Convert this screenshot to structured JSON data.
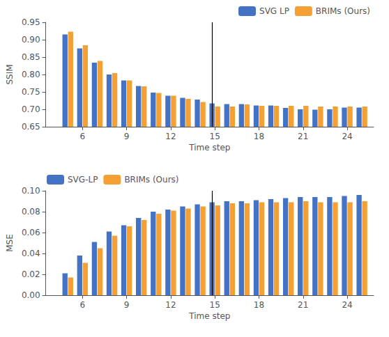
{
  "chart_data": [
    {
      "type": "bar",
      "x": [
        5,
        6,
        7,
        8,
        9,
        10,
        11,
        12,
        13,
        14,
        15,
        16,
        17,
        18,
        19,
        20,
        21,
        22,
        23,
        24,
        25
      ],
      "series": [
        {
          "name": "SVG LP",
          "color": "#4472C4",
          "values": [
            0.915,
            0.875,
            0.834,
            0.8,
            0.783,
            0.767,
            0.748,
            0.739,
            0.733,
            0.728,
            0.717,
            0.715,
            0.715,
            0.711,
            0.711,
            0.704,
            0.7,
            0.699,
            0.7,
            0.705,
            0.705
          ]
        },
        {
          "name": "BRIMs (Ours)",
          "color": "#F4A035",
          "values": [
            0.923,
            0.884,
            0.839,
            0.804,
            0.783,
            0.766,
            0.747,
            0.739,
            0.73,
            0.721,
            0.708,
            0.708,
            0.714,
            0.71,
            0.71,
            0.71,
            0.71,
            0.708,
            0.708,
            0.708,
            0.708
          ]
        }
      ],
      "xlabel": "Time step",
      "ylabel": "SSIM",
      "xlim": [
        3.5,
        25.8
      ],
      "xticks": [
        6,
        9,
        12,
        15,
        18,
        21,
        24
      ],
      "ylim": [
        0.65,
        0.95
      ],
      "yticks": [
        0.65,
        {
          "value": 0.7,
          "label": "0.70"
        },
        0.75,
        {
          "value": 0.8,
          "label": "0.80"
        },
        0.85,
        {
          "value": 0.9,
          "label": "0.90"
        },
        0.95
      ],
      "vlines": [
        15
      ],
      "legend": "upper right",
      "grid": false
    },
    {
      "type": "bar",
      "x": [
        5,
        6,
        7,
        8,
        9,
        10,
        11,
        12,
        13,
        14,
        15,
        16,
        17,
        18,
        19,
        20,
        21,
        22,
        23,
        24,
        25
      ],
      "series": [
        {
          "name": "SVG-LP",
          "color": "#4472C4",
          "values": [
            0.021,
            0.038,
            0.051,
            0.061,
            0.067,
            0.074,
            0.08,
            0.082,
            0.085,
            0.087,
            0.089,
            0.09,
            0.09,
            0.091,
            0.092,
            0.093,
            0.094,
            0.094,
            0.094,
            0.095,
            0.096
          ]
        },
        {
          "name": "BRIMs (Ours)",
          "color": "#F4A035",
          "values": [
            0.017,
            0.031,
            0.045,
            0.057,
            0.066,
            0.072,
            0.078,
            0.081,
            0.083,
            0.085,
            0.086,
            0.088,
            0.088,
            0.089,
            0.089,
            0.089,
            0.09,
            0.089,
            0.089,
            0.089,
            0.09
          ]
        }
      ],
      "xlabel": "Time step",
      "ylabel": "MSE",
      "xlim": [
        3.5,
        25.8
      ],
      "xticks": [
        6,
        9,
        12,
        15,
        18,
        21,
        24
      ],
      "ylim": [
        0.0,
        0.1
      ],
      "yticks": [
        {
          "value": 0,
          "label": "0.00"
        },
        0.02,
        0.04,
        0.06,
        0.08,
        {
          "value": 0.1,
          "label": "0.10"
        }
      ],
      "vlines": [
        15
      ],
      "legend": "upper left",
      "grid": false
    }
  ]
}
